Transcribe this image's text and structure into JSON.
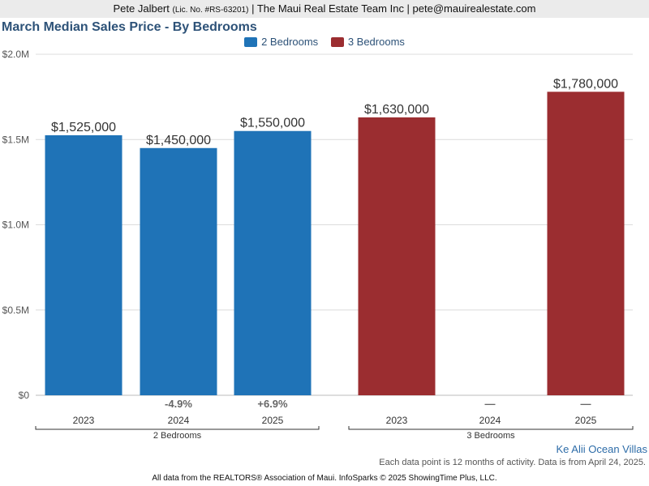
{
  "header": {
    "agent_name": "Pete Jalbert",
    "license": "(Lic. No. #RS-63201)",
    "rest": "| The Maui Real Estate Team Inc | pete@mauirealestate.com"
  },
  "colors": {
    "two_bed": "#1f73b7",
    "three_bed": "#9b2d30",
    "title": "#2d5278"
  },
  "chart_data": {
    "type": "bar",
    "title": "March Median Sales Price - By Bedrooms",
    "ylim": [
      0,
      2000000
    ],
    "yticks": [
      {
        "value": 0,
        "label": "$0"
      },
      {
        "value": 500000,
        "label": "$0.5M"
      },
      {
        "value": 1000000,
        "label": "$1.0M"
      },
      {
        "value": 1500000,
        "label": "$1.5M"
      },
      {
        "value": 2000000,
        "label": "$2.0M"
      }
    ],
    "grid": true,
    "legend_position": "top-center",
    "groups": [
      {
        "name": "2 Bedrooms",
        "color_key": "two_bed",
        "bars": [
          {
            "year": "2023",
            "value": 1525000,
            "label": "$1,525,000",
            "change": ""
          },
          {
            "year": "2024",
            "value": 1450000,
            "label": "$1,450,000",
            "change": "-4.9%"
          },
          {
            "year": "2025",
            "value": 1550000,
            "label": "$1,550,000",
            "change": "+6.9%"
          }
        ]
      },
      {
        "name": "3 Bedrooms",
        "color_key": "three_bed",
        "bars": [
          {
            "year": "2023",
            "value": 1630000,
            "label": "$1,630,000",
            "change": ""
          },
          {
            "year": "2024",
            "value": null,
            "label": "",
            "change": "—"
          },
          {
            "year": "2025",
            "value": 1780000,
            "label": "$1,780,000",
            "change": "—"
          }
        ]
      }
    ]
  },
  "legend": [
    {
      "label": "2 Bedrooms",
      "color_key": "two_bed"
    },
    {
      "label": "3 Bedrooms",
      "color_key": "three_bed"
    }
  ],
  "locale": "Ke Alii Ocean Villas",
  "footnote": "Each data point is 12 months of activity. Data is from April 24, 2025.",
  "source": "All data from the REALTORS® Association of Maui. InfoSparks © 2025 ShowingTime Plus, LLC."
}
